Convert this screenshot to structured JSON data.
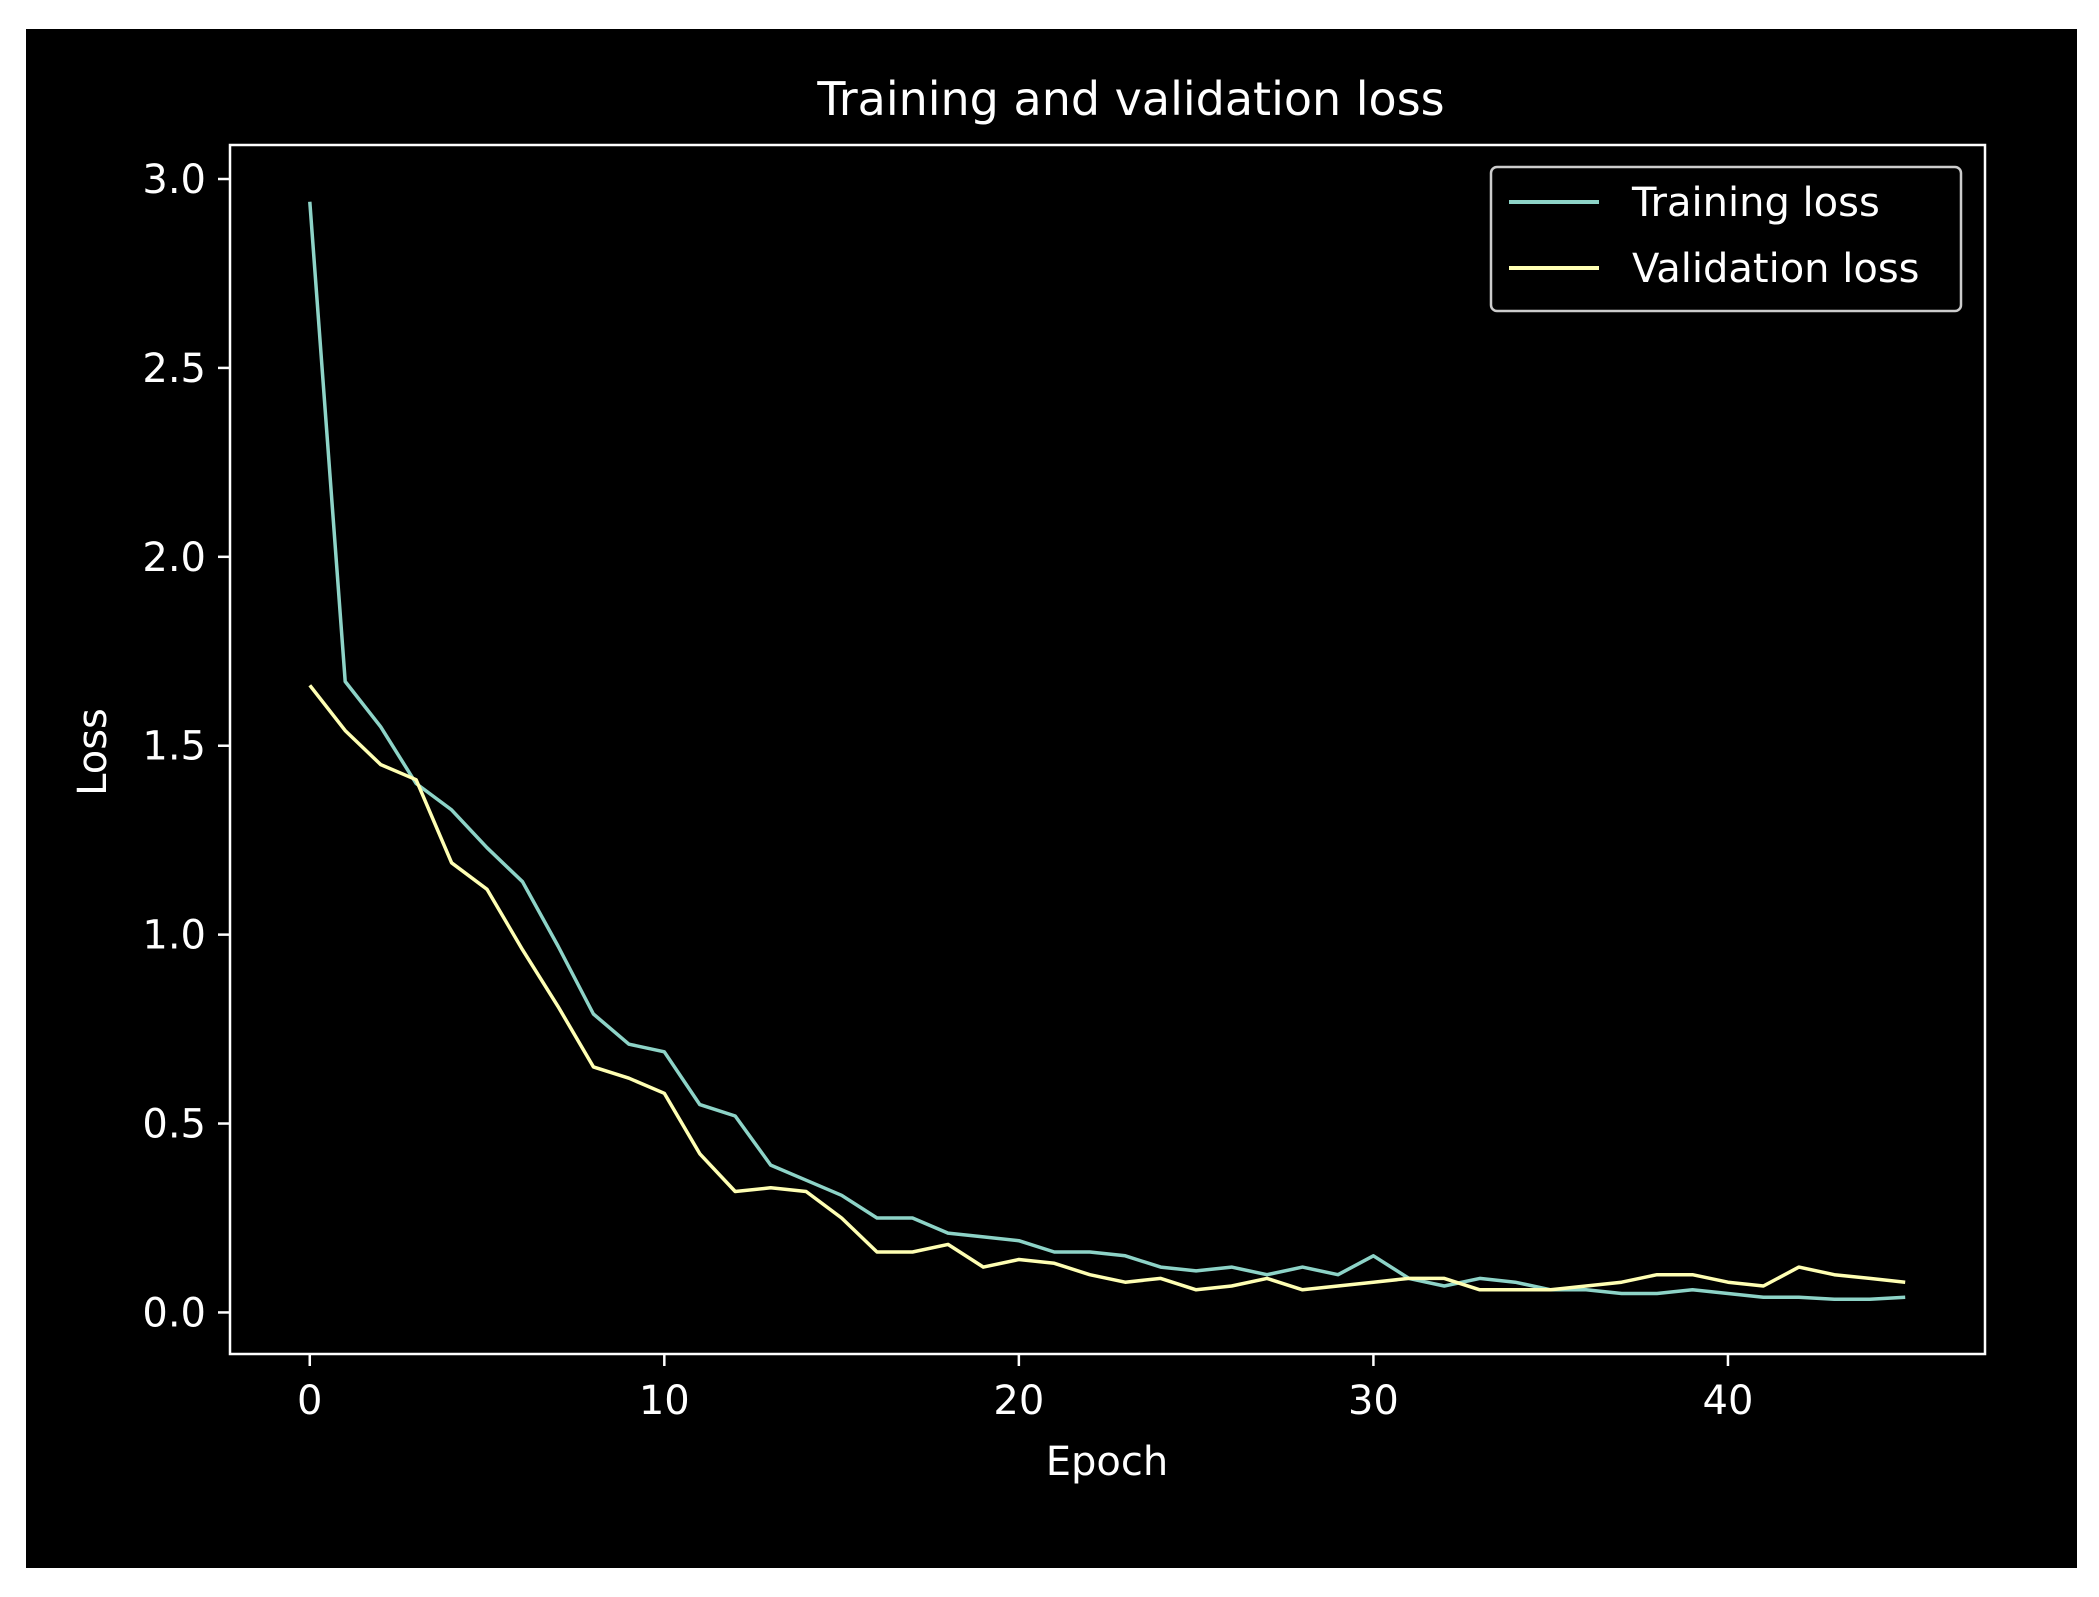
{
  "chart_data": {
    "type": "line",
    "title": "Training and validation loss",
    "xlabel": "Epoch",
    "ylabel": "Loss",
    "xlim": [
      -2.25,
      47.25
    ],
    "ylim": [
      -0.11,
      3.09
    ],
    "xticks": [
      0,
      10,
      20,
      30,
      40
    ],
    "yticks": [
      0.0,
      0.5,
      1.0,
      1.5,
      2.0,
      2.5,
      3.0
    ],
    "x": [
      0,
      1,
      2,
      3,
      4,
      5,
      6,
      7,
      8,
      9,
      10,
      11,
      12,
      13,
      14,
      15,
      16,
      17,
      18,
      19,
      20,
      21,
      22,
      23,
      24,
      25,
      26,
      27,
      28,
      29,
      30,
      31,
      32,
      33,
      34,
      35,
      36,
      37,
      38,
      39,
      40,
      41,
      42,
      43,
      44,
      45
    ],
    "series": [
      {
        "name": "Training loss",
        "color": "#8dd3c7",
        "values": [
          2.94,
          1.67,
          1.55,
          1.4,
          1.33,
          1.23,
          1.14,
          0.97,
          0.79,
          0.71,
          0.69,
          0.55,
          0.52,
          0.39,
          0.35,
          0.31,
          0.25,
          0.25,
          0.21,
          0.2,
          0.19,
          0.16,
          0.16,
          0.15,
          0.12,
          0.11,
          0.12,
          0.1,
          0.12,
          0.1,
          0.15,
          0.09,
          0.07,
          0.09,
          0.08,
          0.06,
          0.06,
          0.05,
          0.05,
          0.06,
          0.05,
          0.04,
          0.04,
          0.035,
          0.035,
          0.04
        ]
      },
      {
        "name": "Validation loss",
        "color": "#ffffb3",
        "values": [
          1.66,
          1.54,
          1.45,
          1.41,
          1.19,
          1.12,
          0.96,
          0.81,
          0.65,
          0.62,
          0.58,
          0.42,
          0.32,
          0.33,
          0.32,
          0.25,
          0.16,
          0.16,
          0.18,
          0.12,
          0.14,
          0.13,
          0.1,
          0.08,
          0.09,
          0.06,
          0.07,
          0.09,
          0.06,
          0.07,
          0.08,
          0.09,
          0.09,
          0.06,
          0.06,
          0.06,
          0.07,
          0.08,
          0.1,
          0.1,
          0.08,
          0.07,
          0.12,
          0.1,
          0.09,
          0.08
        ]
      }
    ],
    "legend": "top-right"
  }
}
